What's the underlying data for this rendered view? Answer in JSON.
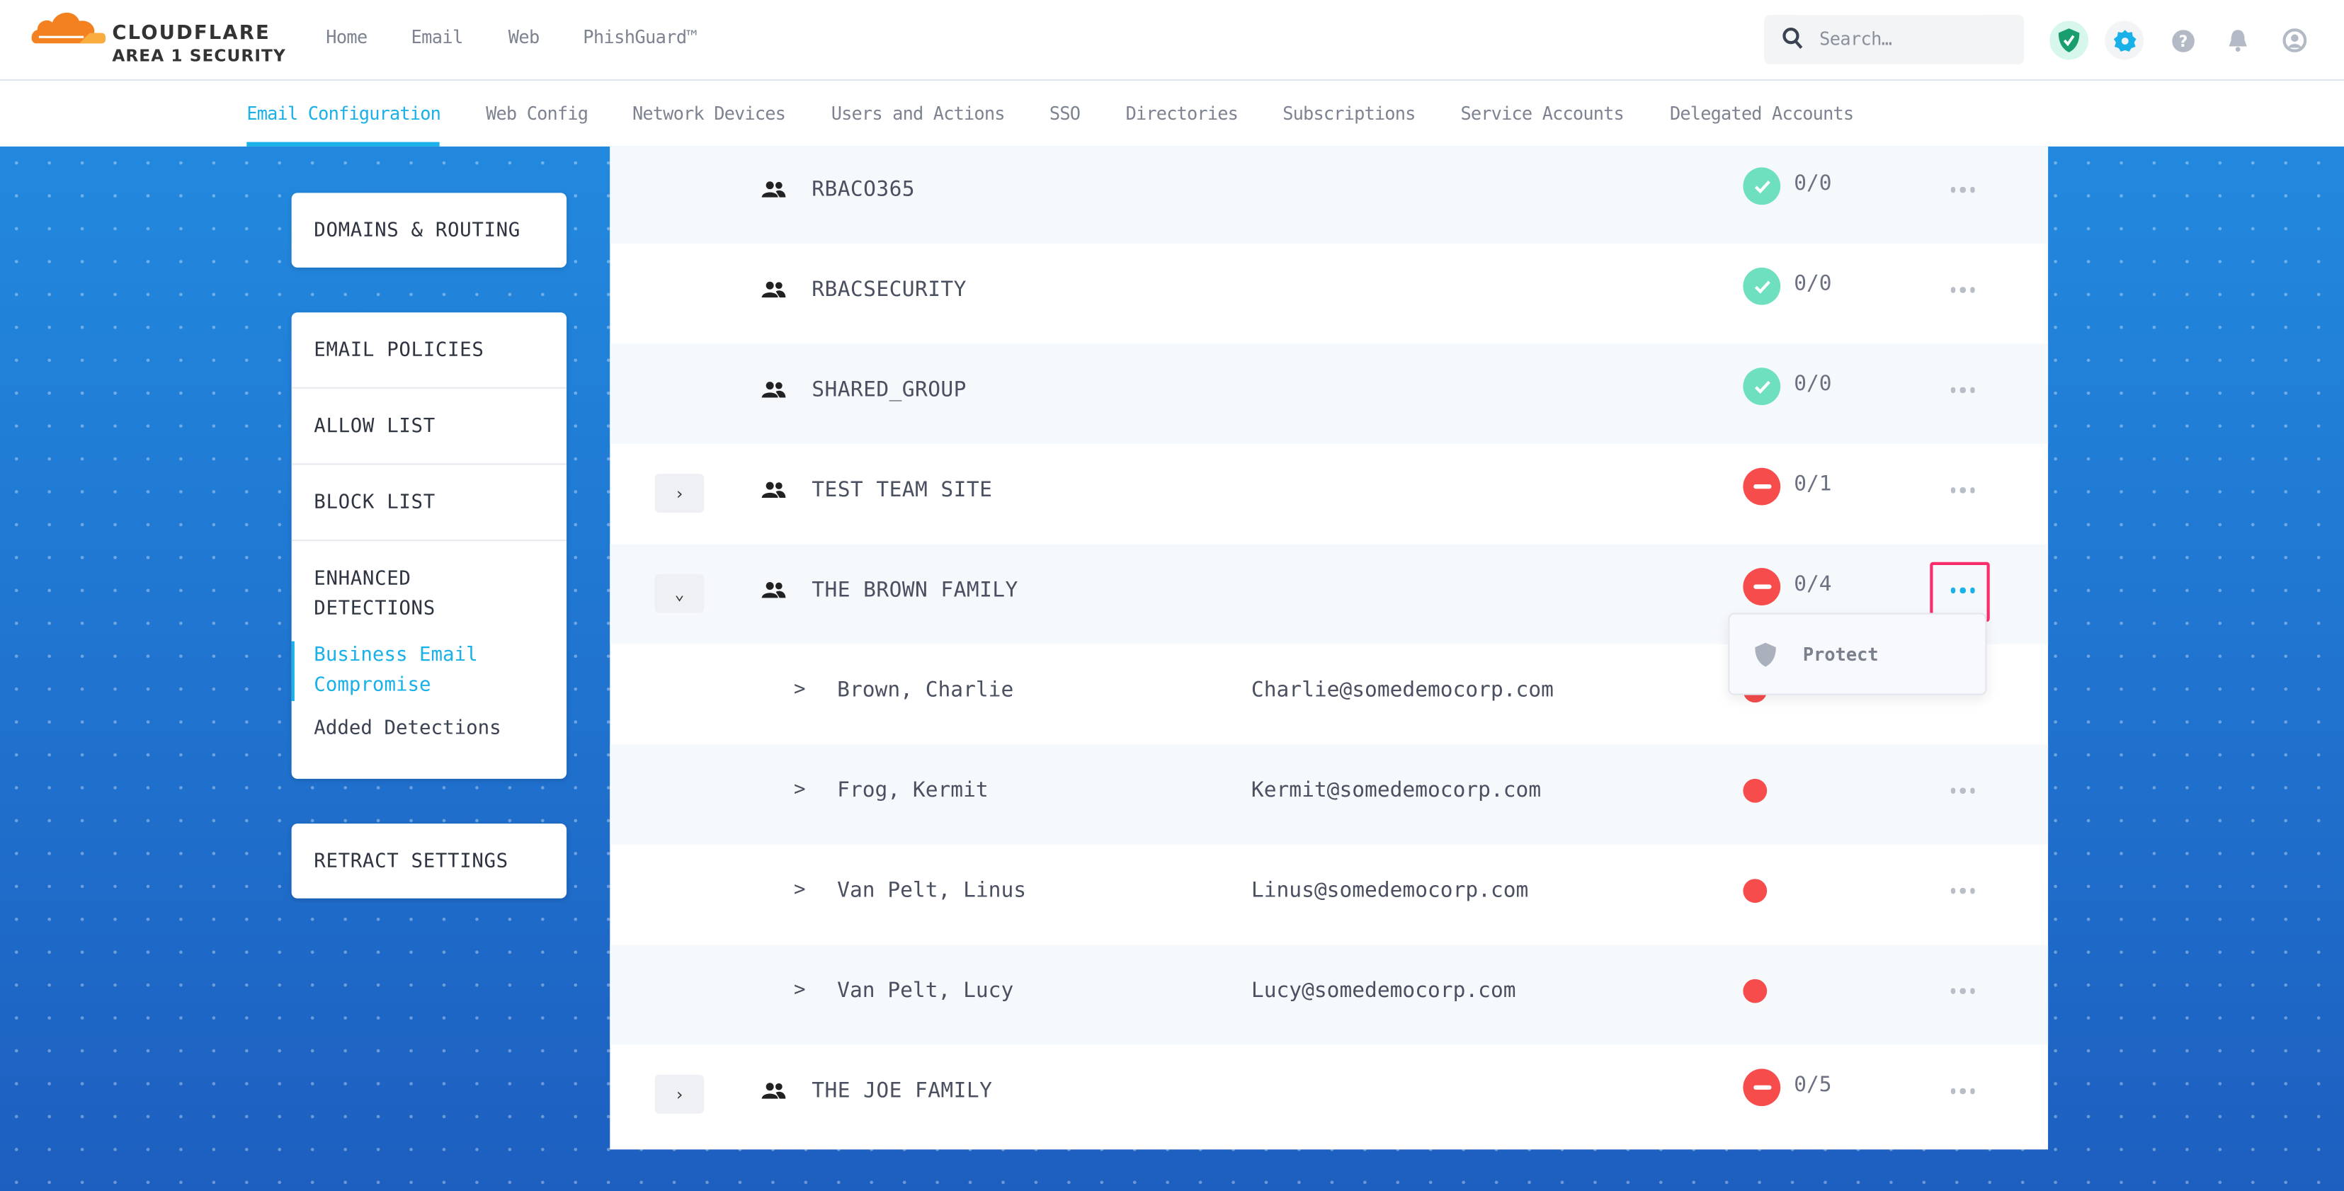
{
  "header": {
    "logo": {
      "brand": "CLOUDFLARE",
      "product": "AREA 1 SECURITY"
    },
    "nav": [
      "Home",
      "Email",
      "Web",
      "PhishGuard™"
    ],
    "search": {
      "placeholder": "Search…",
      "icon": "search-icon"
    },
    "icons": [
      "shield-check-icon",
      "gear-icon",
      "help-icon",
      "bell-icon",
      "user-icon"
    ],
    "colors": {
      "accent": "#1ab0e8",
      "shield": "#1a9e6e"
    }
  },
  "subnav": {
    "tabs": [
      "Email Configuration",
      "Web Config",
      "Network Devices",
      "Users and Actions",
      "SSO",
      "Directories",
      "Subscriptions",
      "Service Accounts",
      "Delegated Accounts"
    ],
    "active": "Email Configuration"
  },
  "sidebar": {
    "card1": [
      "DOMAINS & ROUTING"
    ],
    "card2": {
      "items": [
        "EMAIL POLICIES",
        "ALLOW LIST",
        "BLOCK LIST"
      ],
      "section": "ENHANCED DETECTIONS",
      "subitems": [
        {
          "label": "Business Email Compromise",
          "active": true
        },
        {
          "label": "Added Detections",
          "active": false
        }
      ]
    },
    "card3": [
      "RETRACT SETTINGS"
    ]
  },
  "rows": [
    {
      "type": "group",
      "name": "RBACO365",
      "status": "ok",
      "count": "0/0",
      "expander": "none"
    },
    {
      "type": "group",
      "name": "RBACSECURITY",
      "status": "ok",
      "count": "0/0",
      "expander": "none"
    },
    {
      "type": "group",
      "name": "SHARED_GROUP",
      "status": "ok",
      "count": "0/0",
      "expander": "none"
    },
    {
      "type": "group",
      "name": "TEST TEAM SITE",
      "status": "bad",
      "count": "0/1",
      "expander": "collapsed"
    },
    {
      "type": "group",
      "name": "THE BROWN FAMILY",
      "status": "bad",
      "count": "0/4",
      "expander": "expanded",
      "menu_open": true
    },
    {
      "type": "member",
      "name": "Brown, Charlie",
      "email": "Charlie@somedemocorp.com"
    },
    {
      "type": "member",
      "name": "Frog, Kermit",
      "email": "Kermit@somedemocorp.com"
    },
    {
      "type": "member",
      "name": "Van Pelt, Linus",
      "email": "Linus@somedemocorp.com"
    },
    {
      "type": "member",
      "name": "Van Pelt, Lucy",
      "email": "Lucy@somedemocorp.com"
    },
    {
      "type": "group",
      "name": "THE JOE FAMILY",
      "status": "bad",
      "count": "0/5",
      "expander": "collapsed"
    }
  ],
  "dropdown": {
    "items": [
      {
        "label": "Protect",
        "icon": "shield-icon"
      }
    ]
  },
  "member_chevron": ">",
  "colors": {
    "ok": "#6ee0bf",
    "bad": "#f74c4c",
    "highlight": "#fb2d6c"
  }
}
